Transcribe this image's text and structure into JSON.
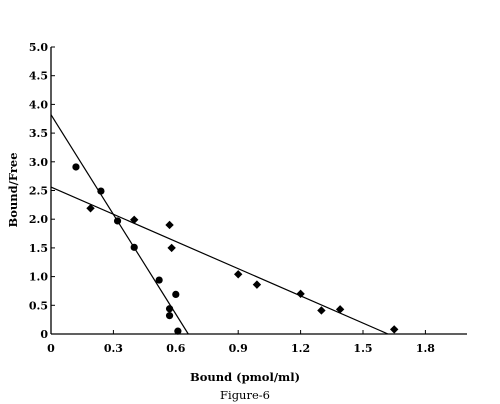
{
  "chart_data": {
    "type": "scatter",
    "xlabel": "Bound (pmol/ml)",
    "ylabel": "Bound/Free",
    "caption": "Figure-6",
    "xlim": [
      0,
      2.0
    ],
    "ylim": [
      0,
      5.0
    ],
    "x_ticks": [
      0,
      0.3,
      0.6,
      0.9,
      1.2,
      1.5,
      1.8
    ],
    "x_tick_labels": [
      "0",
      "0.3",
      "0.6",
      "0.9",
      "1.2",
      "1.5",
      "1.8"
    ],
    "y_ticks": [
      0,
      0.5,
      1.0,
      1.5,
      2.0,
      2.5,
      3.0,
      3.5,
      4.0,
      4.5,
      5.0
    ],
    "y_tick_labels": [
      "0",
      "0.5",
      "1.0",
      "1.5",
      "2.0",
      "2.5",
      "3.0",
      "3.5",
      "4.0",
      "4.5",
      "5.0"
    ],
    "grid": false,
    "series": [
      {
        "marker": "circle",
        "color": "#000000",
        "points": [
          [
            0.12,
            2.91
          ],
          [
            0.24,
            2.49
          ],
          [
            0.32,
            1.97
          ],
          [
            0.4,
            1.51
          ],
          [
            0.52,
            0.94
          ],
          [
            0.57,
            0.32
          ],
          [
            0.57,
            0.44
          ],
          [
            0.6,
            0.69
          ],
          [
            0.61,
            0.05
          ]
        ],
        "fit_line": [
          [
            0,
            3.82
          ],
          [
            0.66,
            0
          ]
        ]
      },
      {
        "marker": "diamond",
        "color": "#000000",
        "points": [
          [
            0.19,
            2.19
          ],
          [
            0.4,
            1.99
          ],
          [
            0.57,
            1.9
          ],
          [
            0.58,
            1.5
          ],
          [
            0.9,
            1.04
          ],
          [
            0.99,
            0.86
          ],
          [
            1.2,
            0.7
          ],
          [
            1.3,
            0.41
          ],
          [
            1.39,
            0.43
          ],
          [
            1.65,
            0.08
          ]
        ],
        "fit_line": [
          [
            0,
            2.56
          ],
          [
            1.62,
            0
          ]
        ]
      }
    ]
  }
}
